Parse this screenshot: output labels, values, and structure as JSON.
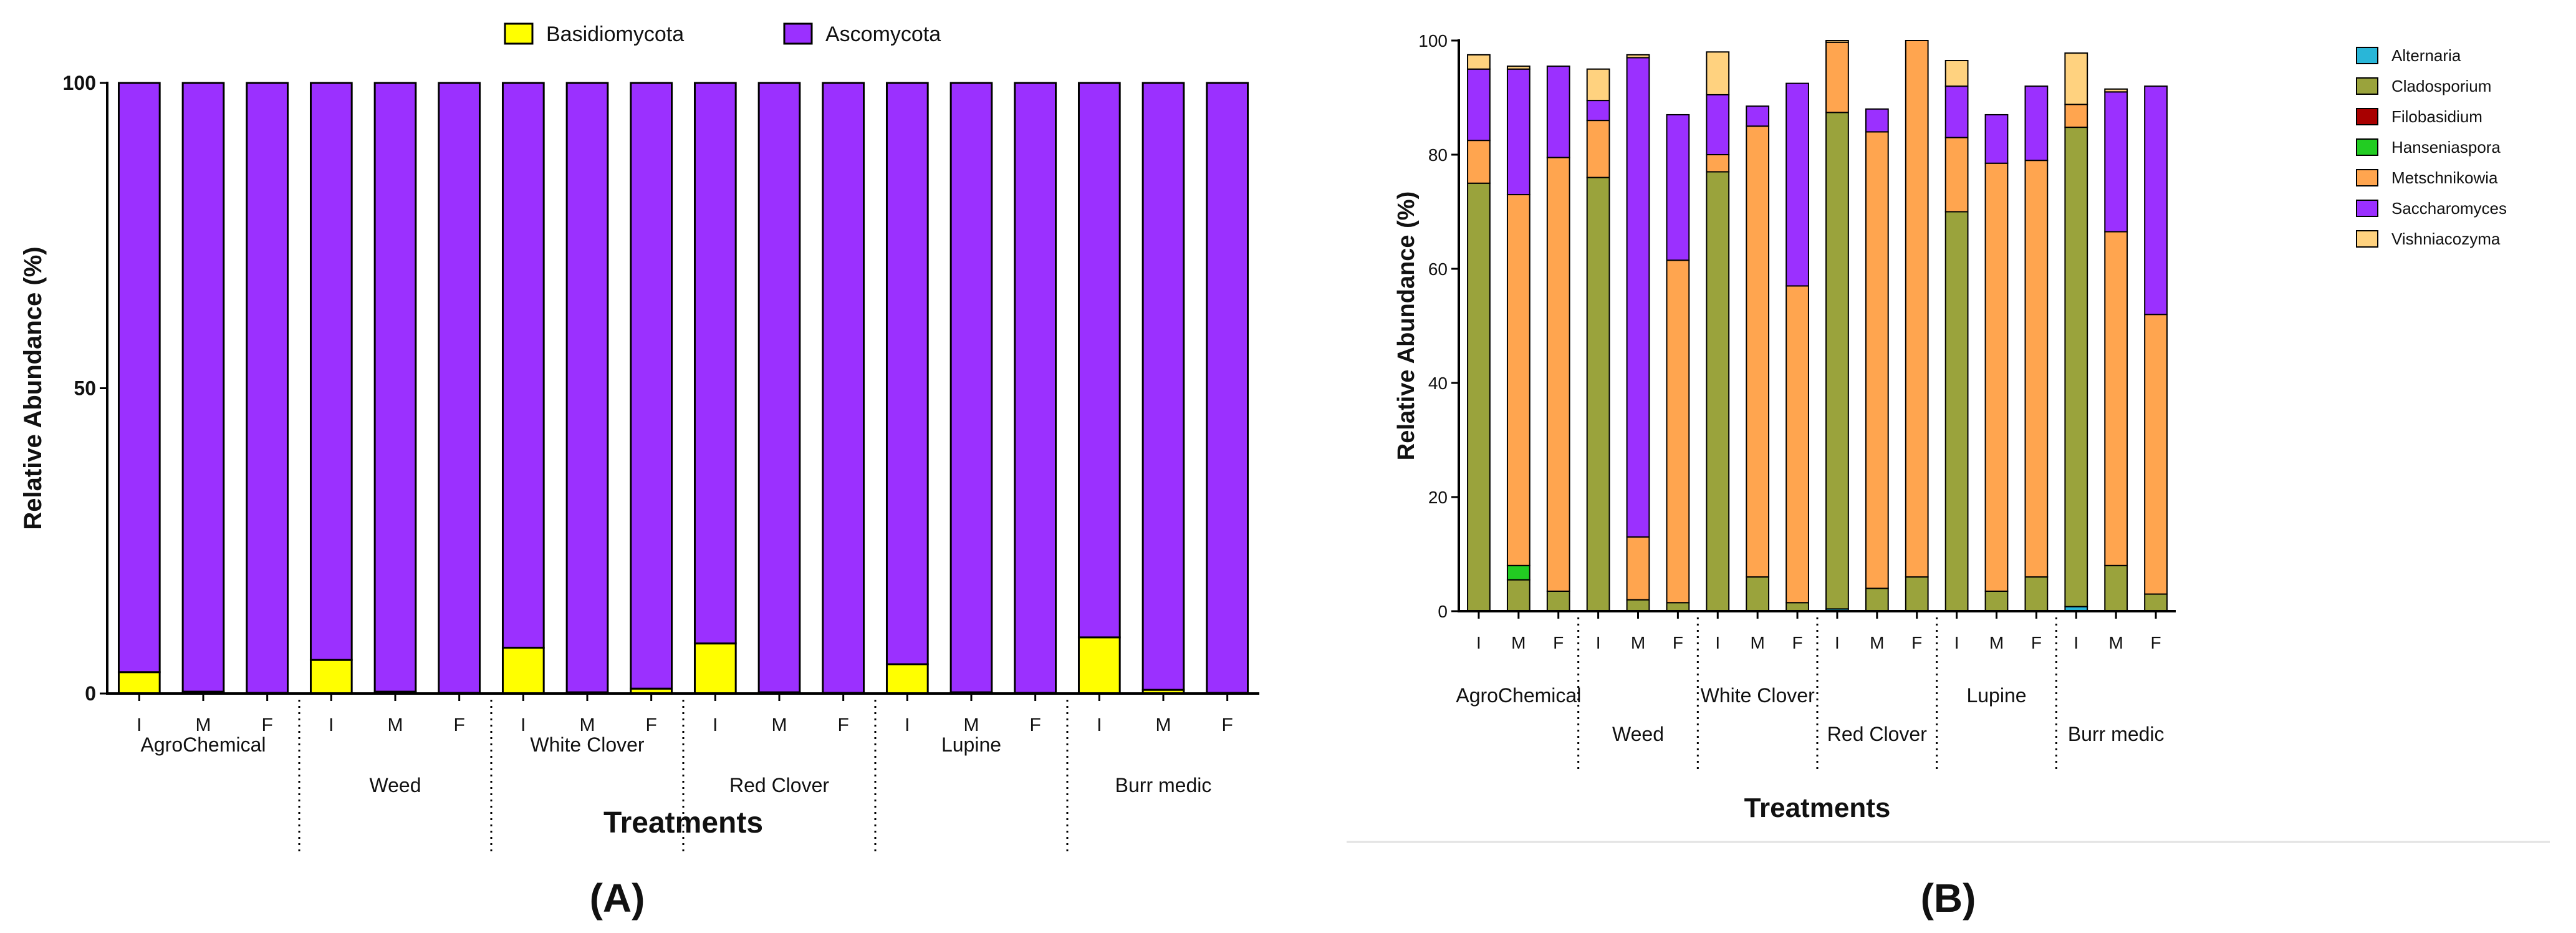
{
  "chart_data": [
    {
      "type": "bar",
      "stacked": true,
      "panel_label": "(A)",
      "xlabel": "Treatments",
      "ylabel": "Relative Abundance (%)",
      "ylim": [
        0,
        100
      ],
      "yticks": [
        0,
        50,
        100
      ],
      "legend_position": "top",
      "categories": [
        "I",
        "M",
        "F",
        "I",
        "M",
        "F",
        "I",
        "M",
        "F",
        "I",
        "M",
        "F",
        "I",
        "M",
        "F",
        "I",
        "M",
        "F"
      ],
      "groups": [
        "AgroChemical",
        "Weed",
        "White Clover",
        "Red Clover",
        "Lupine",
        "Burr medic"
      ],
      "series": [
        {
          "name": "Basidiomycota",
          "color": "#ffff00",
          "values": [
            3.5,
            0.3,
            0.1,
            5.5,
            0.3,
            0.1,
            7.5,
            0.2,
            0.8,
            8.2,
            0.2,
            0.1,
            4.8,
            0.2,
            0.1,
            9.2,
            0.6,
            0.1
          ]
        },
        {
          "name": "Ascomycota",
          "color": "#9b30ff",
          "values": [
            96.5,
            99.7,
            99.9,
            94.5,
            99.7,
            99.9,
            92.5,
            99.8,
            99.2,
            91.8,
            99.8,
            99.9,
            95.2,
            99.8,
            99.9,
            90.8,
            99.4,
            99.9
          ]
        }
      ]
    },
    {
      "type": "bar",
      "stacked": true,
      "panel_label": "(B)",
      "xlabel": "Treatments",
      "ylabel": "Relative Abundance (%)",
      "ylim": [
        0,
        100
      ],
      "yticks": [
        0,
        20,
        40,
        60,
        80,
        100
      ],
      "legend_position": "right",
      "categories": [
        "I",
        "M",
        "F",
        "I",
        "M",
        "F",
        "I",
        "M",
        "F",
        "I",
        "M",
        "F",
        "I",
        "M",
        "F",
        "I",
        "M",
        "F"
      ],
      "groups": [
        "AgroChemical",
        "Weed",
        "White Clover",
        "Red Clover",
        "Lupine",
        "Burr medic"
      ],
      "series": [
        {
          "name": "Alternaria",
          "color": "#29b6d8",
          "values": [
            0,
            0,
            0,
            0,
            0,
            0,
            0,
            0,
            0,
            0.4,
            0,
            0,
            0,
            0,
            0,
            0.8,
            0,
            0
          ]
        },
        {
          "name": "Cladosporium",
          "color": "#9aa33c",
          "values": [
            75,
            5.5,
            3.5,
            76,
            2,
            1.5,
            77,
            6,
            1.5,
            87,
            4,
            6,
            70,
            3.5,
            6,
            84,
            8,
            3
          ]
        },
        {
          "name": "Filobasidium",
          "color": "#a80000",
          "values": [
            0,
            0,
            0,
            0,
            0,
            0,
            0,
            0,
            0,
            0,
            0,
            0,
            0,
            0,
            0,
            0,
            0,
            0
          ]
        },
        {
          "name": "Hanseniaspora",
          "color": "#22cc22",
          "values": [
            0,
            2.5,
            0,
            0,
            0,
            0,
            0,
            0,
            0,
            0,
            0,
            0,
            0,
            0,
            0,
            0,
            0,
            0
          ]
        },
        {
          "name": "Metschnikowia",
          "color": "#ffa54f",
          "values": [
            7.5,
            65,
            76,
            10,
            11,
            60,
            3,
            79,
            55.5,
            12.3,
            80,
            94,
            13,
            75,
            73,
            4,
            58.5,
            49
          ]
        },
        {
          "name": "Saccharomyces",
          "color": "#9b30ff",
          "values": [
            12.5,
            22,
            16,
            3.5,
            84,
            25.5,
            10.5,
            3.5,
            35.5,
            0,
            4,
            0,
            9,
            8.5,
            13,
            0,
            24.5,
            40
          ]
        },
        {
          "name": "Vishniacozyma",
          "color": "#ffd27f",
          "values": [
            2.5,
            0.5,
            0,
            5.5,
            0.5,
            0,
            7.5,
            0,
            0,
            0.3,
            0,
            0,
            4.5,
            0,
            0,
            9,
            0.5,
            0
          ]
        }
      ]
    }
  ]
}
